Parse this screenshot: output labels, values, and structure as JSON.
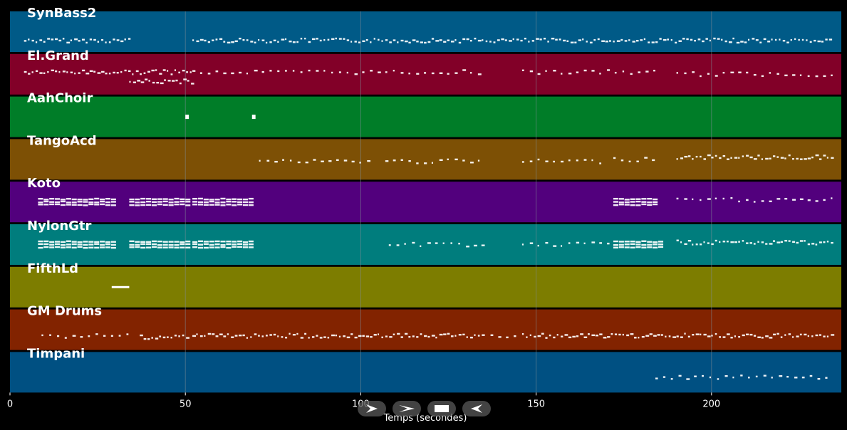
{
  "colors": {
    "background": "#000000",
    "note": "#ffffff",
    "grid": "#7f8c95"
  },
  "controls": [
    {
      "name": "play-icon",
      "label": "play"
    },
    {
      "name": "fast-forward-icon",
      "label": "forward"
    },
    {
      "name": "stop-icon",
      "label": "stop"
    },
    {
      "name": "rewind-icon",
      "label": "rewind"
    }
  ],
  "chart_data": {
    "type": "piano-roll",
    "xlabel": "Temps (secondes)",
    "xlim": [
      0,
      237
    ],
    "xticks": [
      0,
      50,
      100,
      150,
      200
    ],
    "grid": true,
    "tracks": [
      {
        "name": "SynBass2",
        "color": "#005a87",
        "segments": [
          [
            4,
            34,
            0.72,
            "dense"
          ],
          [
            52,
            234,
            0.72,
            "dense"
          ]
        ]
      },
      {
        "name": "El.Grand",
        "color": "#820028",
        "segments": [
          [
            4,
            52,
            0.45,
            "dense"
          ],
          [
            34,
            52,
            0.68,
            "dense"
          ],
          [
            52,
            135,
            0.45,
            "sparse"
          ],
          [
            146,
            184,
            0.45,
            "sparse"
          ],
          [
            190,
            234,
            0.5,
            "sparse"
          ]
        ]
      },
      {
        "name": "AahChoir",
        "color": "#007d28",
        "segments": [
          [
            50,
            51,
            0.5,
            "block"
          ],
          [
            69,
            70,
            0.5,
            "block"
          ]
        ]
      },
      {
        "name": "TangoAcd",
        "color": "#7d5005",
        "segments": [
          [
            71,
            104,
            0.55,
            "sparse"
          ],
          [
            107,
            135,
            0.55,
            "sparse"
          ],
          [
            146,
            169,
            0.55,
            "sparse"
          ],
          [
            172,
            184,
            0.5,
            "sparse"
          ],
          [
            190,
            234,
            0.45,
            "dense"
          ]
        ]
      },
      {
        "name": "Koto",
        "color": "#52007d",
        "segments": [
          [
            8,
            29,
            0.5,
            "rows"
          ],
          [
            34,
            51,
            0.5,
            "rows"
          ],
          [
            52,
            69,
            0.5,
            "rows"
          ],
          [
            172,
            184,
            0.5,
            "rows"
          ],
          [
            190,
            234,
            0.45,
            "sparse"
          ]
        ]
      },
      {
        "name": "NylonGtr",
        "color": "#007d7d",
        "segments": [
          [
            8,
            29,
            0.5,
            "rows"
          ],
          [
            34,
            51,
            0.5,
            "rows"
          ],
          [
            52,
            69,
            0.5,
            "rows"
          ],
          [
            108,
            135,
            0.5,
            "sparse"
          ],
          [
            146,
            171,
            0.5,
            "sparse"
          ],
          [
            172,
            185,
            0.5,
            "rows"
          ],
          [
            190,
            234,
            0.45,
            "dense"
          ]
        ]
      },
      {
        "name": "FifthLd",
        "color": "#7d7d00",
        "segments": [
          [
            29,
            34,
            0.5,
            "line"
          ]
        ]
      },
      {
        "name": "GM Drums",
        "color": "#822300",
        "segments": [
          [
            9,
            35,
            0.65,
            "sparse"
          ],
          [
            37,
            51,
            0.68,
            "dense"
          ],
          [
            52,
            135,
            0.65,
            "dense"
          ],
          [
            137,
            145,
            0.65,
            "sparse"
          ],
          [
            146,
            234,
            0.65,
            "dense"
          ]
        ]
      },
      {
        "name": "Timpani",
        "color": "#005082",
        "segments": [
          [
            184,
            234,
            0.63,
            "sparse"
          ]
        ]
      }
    ]
  }
}
